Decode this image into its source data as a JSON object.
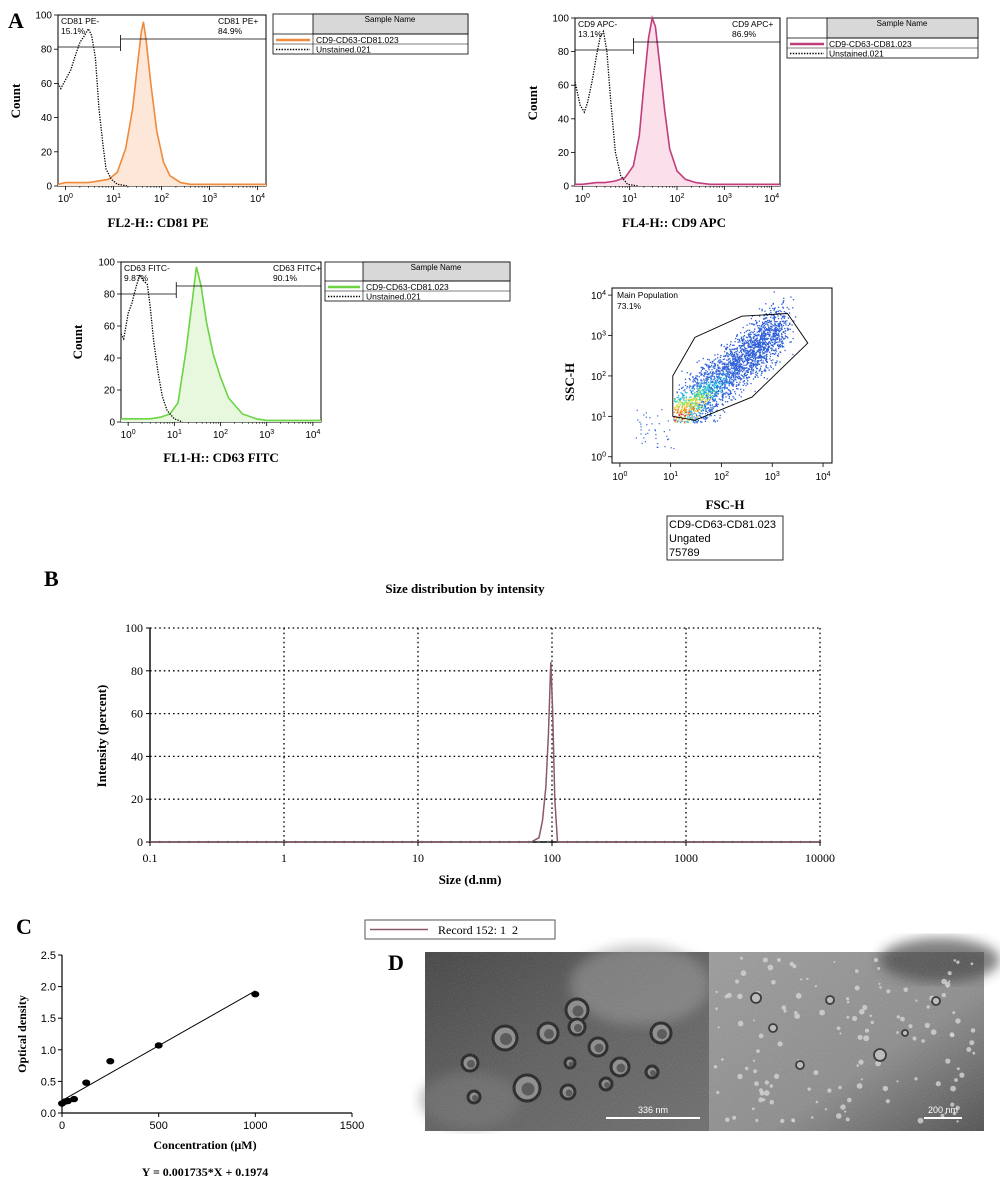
{
  "panel_labels": {
    "a": "A",
    "b": "B",
    "c": "C",
    "d": "D"
  },
  "chart_data": [
    {
      "id": "cd81",
      "type": "line",
      "ylabel": "Count",
      "xlabel": "FL2-H:: CD81 PE",
      "ylim": [
        0,
        100
      ],
      "xscale": "log",
      "xlim": [
        0.7,
        15000
      ],
      "yticks": [
        "0",
        "20",
        "40",
        "60",
        "80",
        "100"
      ],
      "xticks": [
        {
          "b": "10",
          "e": "0"
        },
        {
          "b": "10",
          "e": "1"
        },
        {
          "b": "10",
          "e": "2"
        },
        {
          "b": "10",
          "e": "3"
        },
        {
          "b": "10",
          "e": "4"
        }
      ],
      "gates": {
        "neg_label": "CD81 PE-",
        "neg_value": "15.1%",
        "pos_label": "CD81 PE+",
        "pos_value": "84.9%",
        "split": 14
      },
      "legend_header": "Sample Name",
      "accent": "#f08a3c",
      "fill": "#fde7d8",
      "series": [
        {
          "name": "CD9-CD63-CD81.023",
          "x": [
            0.7,
            1,
            2,
            3,
            5,
            8,
            12,
            18,
            25,
            32,
            38,
            42,
            48,
            60,
            80,
            110,
            150,
            250,
            400,
            1000,
            15000
          ],
          "y": [
            1,
            2,
            2,
            2,
            3,
            4,
            8,
            22,
            45,
            72,
            90,
            96,
            85,
            60,
            32,
            14,
            6,
            2,
            1,
            1,
            1
          ]
        },
        {
          "name": "Unstained.021",
          "x": [
            0.7,
            0.8,
            1,
            1.3,
            1.6,
            2,
            2.5,
            3,
            3.5,
            4.2,
            5,
            6,
            7,
            9,
            12,
            20
          ],
          "y": [
            60,
            57,
            62,
            68,
            76,
            84,
            88,
            92,
            88,
            75,
            45,
            25,
            10,
            4,
            1,
            0
          ]
        }
      ]
    },
    {
      "id": "cd9",
      "type": "line",
      "ylabel": "Count",
      "xlabel": "FL4-H:: CD9 APC",
      "ylim": [
        0,
        100
      ],
      "xscale": "log",
      "xlim": [
        0.7,
        15000
      ],
      "yticks": [
        "0",
        "20",
        "40",
        "60",
        "80",
        "100"
      ],
      "xticks": [
        {
          "b": "10",
          "e": "0"
        },
        {
          "b": "10",
          "e": "1"
        },
        {
          "b": "10",
          "e": "2"
        },
        {
          "b": "10",
          "e": "3"
        },
        {
          "b": "10",
          "e": "4"
        }
      ],
      "gates": {
        "neg_label": "CD9 APC-",
        "neg_value": "13.1%",
        "pos_label": "CD9 APC+",
        "pos_value": "86.9%",
        "split": 12
      },
      "legend_header": "Sample Name",
      "accent": "#c03d7b",
      "fill": "#fbe0ec",
      "series": [
        {
          "name": "CD9-CD63-CD81.023",
          "x": [
            0.7,
            1,
            2,
            3,
            5,
            8,
            12,
            16,
            20,
            25,
            30,
            35,
            42,
            55,
            70,
            100,
            150,
            250,
            500,
            15000
          ],
          "y": [
            1,
            1,
            2,
            2,
            3,
            5,
            12,
            30,
            60,
            88,
            100,
            95,
            75,
            45,
            22,
            9,
            4,
            2,
            1,
            1
          ]
        },
        {
          "name": "Unstained.021",
          "x": [
            0.7,
            0.9,
            1.1,
            1.3,
            1.6,
            2,
            2.4,
            2.8,
            3.3,
            4,
            5,
            6.5,
            9,
            15
          ],
          "y": [
            62,
            48,
            44,
            50,
            62,
            78,
            89,
            92,
            80,
            50,
            20,
            6,
            1,
            0
          ]
        }
      ]
    },
    {
      "id": "cd63",
      "type": "line",
      "ylabel": "Count",
      "xlabel": "FL1-H:: CD63 FITC",
      "ylim": [
        0,
        100
      ],
      "xscale": "log",
      "xlim": [
        0.7,
        15000
      ],
      "yticks": [
        "0",
        "20",
        "40",
        "60",
        "80",
        "100"
      ],
      "xticks": [
        {
          "b": "10",
          "e": "0"
        },
        {
          "b": "10",
          "e": "1"
        },
        {
          "b": "10",
          "e": "2"
        },
        {
          "b": "10",
          "e": "3"
        },
        {
          "b": "10",
          "e": "4"
        }
      ],
      "gates": {
        "neg_label": "CD63 FITC-",
        "neg_value": "9.87%",
        "pos_label": "CD63 FITC+",
        "pos_value": "90.1%",
        "split": 11
      },
      "legend_header": "Sample Name",
      "accent": "#6ad443",
      "fill": "#e8f8df",
      "series": [
        {
          "name": "CD9-CD63-CD81.023",
          "x": [
            0.7,
            1,
            2,
            3,
            5,
            8,
            12,
            18,
            25,
            30,
            38,
            50,
            70,
            100,
            150,
            300,
            600,
            1000,
            15000
          ],
          "y": [
            2,
            2,
            2,
            2,
            3,
            5,
            12,
            45,
            78,
            97,
            85,
            62,
            42,
            28,
            15,
            5,
            2,
            1,
            1
          ]
        },
        {
          "name": "Unstained.021",
          "x": [
            0.7,
            0.8,
            1,
            1.2,
            1.5,
            1.8,
            2.2,
            2.6,
            3,
            3.6,
            4.5,
            5.5,
            7,
            10,
            15
          ],
          "y": [
            55,
            52,
            68,
            74,
            85,
            92,
            88,
            86,
            72,
            50,
            30,
            16,
            7,
            2,
            0
          ]
        }
      ]
    },
    {
      "id": "scatter",
      "type": "scatter",
      "ylabel": "SSC-H",
      "xlabel": "FSC-H",
      "xscale": "log",
      "yscale": "log",
      "xlim": [
        0.7,
        15000
      ],
      "ylim": [
        0.7,
        15000
      ],
      "xticks": [
        {
          "b": "10",
          "e": "0"
        },
        {
          "b": "10",
          "e": "1"
        },
        {
          "b": "10",
          "e": "2"
        },
        {
          "b": "10",
          "e": "3"
        },
        {
          "b": "10",
          "e": "4"
        }
      ],
      "yticks": [
        {
          "b": "10",
          "e": "0"
        },
        {
          "b": "10",
          "e": "1"
        },
        {
          "b": "10",
          "e": "2"
        },
        {
          "b": "10",
          "e": "3"
        },
        {
          "b": "10",
          "e": "4"
        }
      ],
      "gate_label": "Main Population",
      "gate_value": "73.1%",
      "gate_polygon": [
        [
          11,
          10
        ],
        [
          30,
          8
        ],
        [
          400,
          30
        ],
        [
          5000,
          650
        ],
        [
          2000,
          3500
        ],
        [
          250,
          3000
        ],
        [
          30,
          900
        ],
        [
          11,
          100
        ]
      ],
      "info_lines": [
        "CD9-CD63-CD81.023",
        "Ungated",
        "75789"
      ]
    },
    {
      "id": "dls",
      "type": "line",
      "title": "Size distribution by intensity",
      "ylabel": "Intensity (percent)",
      "xlabel": "Size (d.nm)",
      "xscale": "log",
      "xlim": [
        0.1,
        10000
      ],
      "ylim": [
        0,
        100
      ],
      "grid": true,
      "yticks": [
        "0",
        "20",
        "40",
        "60",
        "80",
        "100"
      ],
      "xticks": [
        "0.1",
        "1",
        "10",
        "100",
        "1000",
        "10000"
      ],
      "series": [
        {
          "name": "Record 152: 1  2",
          "x": [
            0.1,
            1,
            10,
            60,
            70,
            80,
            85,
            90,
            94,
            98,
            101,
            105,
            110,
            115,
            10000
          ],
          "y": [
            0,
            0,
            0,
            0,
            0,
            2,
            10,
            26,
            50,
            84,
            62,
            20,
            0,
            0,
            0
          ]
        }
      ]
    },
    {
      "id": "bca",
      "type": "scatter",
      "ylabel": "Optical density",
      "xlabel": "Concentration (µM)",
      "xlim": [
        0,
        1500
      ],
      "ylim": [
        0,
        2.5
      ],
      "xticks": [
        "0",
        "500",
        "1000",
        "1500"
      ],
      "yticks": [
        "0.0",
        "0.5",
        "1.0",
        "1.5",
        "2.0",
        "2.5"
      ],
      "points": {
        "x": [
          0,
          15,
          31,
          62,
          125,
          250,
          500,
          1000
        ],
        "y": [
          0.15,
          0.18,
          0.19,
          0.22,
          0.48,
          0.82,
          1.07,
          1.88
        ]
      },
      "fit": {
        "slope": 0.001735,
        "intercept": 0.1974
      },
      "equation": "Y = 0.001735*X + 0.1974"
    }
  ],
  "tem": {
    "left_scale": "336 nm",
    "right_scale": "200 nm"
  },
  "colors": {
    "axis": "#000000",
    "grid": "#000000",
    "dls_line": "#8a5a6a",
    "scatter_dot": "#2f5fd8"
  }
}
